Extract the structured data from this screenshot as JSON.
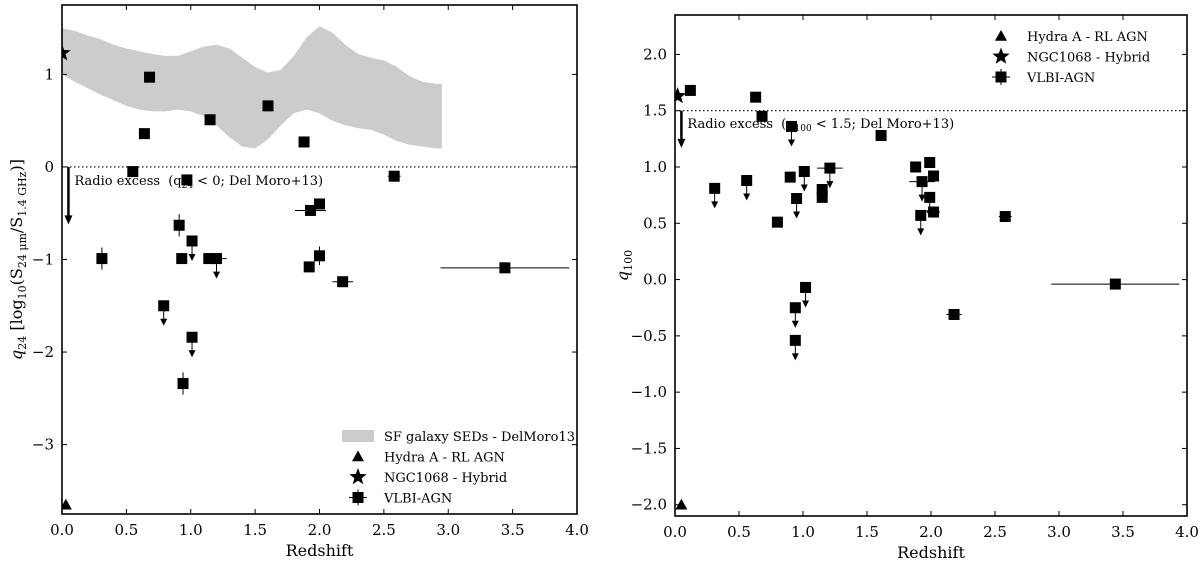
{
  "chart_data": [
    {
      "type": "scatter",
      "id": "left",
      "xlabel": "Redshift",
      "ylabel": "q24 [log10(S24μm/S1.4GHz)]",
      "ylabel_main": "q",
      "ylabel_sub": "24",
      "ylabel_rest": " [log",
      "ylabel_log_sub": "10",
      "ylabel_s1": "(S",
      "ylabel_s1_sub": "24 μm",
      "ylabel_slash": "/S",
      "ylabel_s2_sub": "1.4 GHz",
      "ylabel_end": ")]",
      "xlim": [
        0.0,
        4.0
      ],
      "ylim": [
        -3.75,
        1.75
      ],
      "xticks": [
        0.0,
        0.5,
        1.0,
        1.5,
        2.0,
        2.5,
        3.0,
        3.5,
        4.0
      ],
      "xtick_labels": [
        "0.0",
        "0.5",
        "1.0",
        "1.5",
        "2.0",
        "2.5",
        "3.0",
        "3.5",
        "4.0"
      ],
      "yticks": [
        1,
        0,
        -1,
        -2,
        -3
      ],
      "ytick_labels": [
        "1",
        "0",
        "−1",
        "−2",
        "−3"
      ],
      "threshold": 0,
      "annotation": {
        "text": "Radio excess",
        "detail": "(q",
        "detail_sub": "24",
        "detail_end": " < 0; Del Moro+13)",
        "x": 0.05,
        "y": -0.15,
        "arrow_from": 0.0,
        "arrow_to": -0.62
      },
      "band": {
        "name": "SF galaxy SEDs - DelMoro13",
        "x": [
          0.0,
          0.1,
          0.2,
          0.3,
          0.4,
          0.5,
          0.6,
          0.7,
          0.8,
          0.9,
          1.0,
          1.1,
          1.2,
          1.3,
          1.4,
          1.5,
          1.6,
          1.7,
          1.8,
          1.9,
          2.0,
          2.1,
          2.2,
          2.3,
          2.4,
          2.5,
          2.6,
          2.7,
          2.8,
          2.9,
          2.95
        ],
        "upper": [
          1.5,
          1.47,
          1.42,
          1.38,
          1.32,
          1.28,
          1.25,
          1.22,
          1.2,
          1.2,
          1.25,
          1.3,
          1.32,
          1.28,
          1.18,
          1.08,
          1.02,
          1.05,
          1.2,
          1.4,
          1.52,
          1.45,
          1.32,
          1.22,
          1.18,
          1.15,
          1.08,
          0.98,
          0.92,
          0.9,
          0.9
        ],
        "lower": [
          1.0,
          0.92,
          0.85,
          0.78,
          0.72,
          0.66,
          0.62,
          0.6,
          0.6,
          0.62,
          0.6,
          0.55,
          0.45,
          0.32,
          0.22,
          0.2,
          0.3,
          0.45,
          0.58,
          0.62,
          0.58,
          0.5,
          0.45,
          0.42,
          0.4,
          0.35,
          0.28,
          0.24,
          0.22,
          0.2,
          0.2
        ]
      },
      "hydra": {
        "name": "Hydra A - RL AGN",
        "x": 0.03,
        "y": -3.65
      },
      "ngc": {
        "name": "NGC1068 - Hybrid",
        "x": 0.0,
        "y": 1.23
      },
      "vlbi_name": "VLBI-AGN",
      "points": [
        {
          "x": 0.68,
          "y": 0.97
        },
        {
          "x": 0.64,
          "y": 0.36
        },
        {
          "x": 0.55,
          "y": -0.05
        },
        {
          "x": 1.15,
          "y": 0.51
        },
        {
          "x": 1.6,
          "y": 0.66
        },
        {
          "x": 1.88,
          "y": 0.27
        },
        {
          "x": 0.97,
          "y": -0.14
        },
        {
          "x": 2.58,
          "y": -0.1,
          "xerr": 0.05
        },
        {
          "x": 0.31,
          "y": -0.99,
          "yerr": 0.12
        },
        {
          "x": 0.91,
          "y": -0.63,
          "yerr": 0.12
        },
        {
          "x": 0.93,
          "y": -0.99
        },
        {
          "x": 1.01,
          "y": -0.8,
          "upper": true
        },
        {
          "x": 1.14,
          "y": -0.99
        },
        {
          "x": 1.2,
          "y": -0.99,
          "xerr": 0.08,
          "upper": true
        },
        {
          "x": 0.79,
          "y": -1.5,
          "upper": true
        },
        {
          "x": 1.01,
          "y": -1.84,
          "upper": true
        },
        {
          "x": 0.94,
          "y": -2.34,
          "yerr": 0.12
        },
        {
          "x": 1.93,
          "y": -0.47,
          "xerr": 0.12
        },
        {
          "x": 2.0,
          "y": -0.4
        },
        {
          "x": 1.92,
          "y": -1.08,
          "yerr": 0.05
        },
        {
          "x": 2.0,
          "y": -0.96,
          "yerr": 0.1
        },
        {
          "x": 2.18,
          "y": -1.24,
          "xerr": 0.08
        },
        {
          "x": 3.44,
          "y": -1.09,
          "xerr": 0.5
        }
      ]
    },
    {
      "type": "scatter",
      "id": "right",
      "xlabel": "Redshift",
      "ylabel_main": "q",
      "ylabel_sub": "100",
      "xlim": [
        0.0,
        4.0
      ],
      "ylim": [
        -2.1,
        2.35
      ],
      "xticks": [
        0.0,
        0.5,
        1.0,
        1.5,
        2.0,
        2.5,
        3.0,
        3.5,
        4.0
      ],
      "xtick_labels": [
        "0.0",
        "0.5",
        "1.0",
        "1.5",
        "2.0",
        "2.5",
        "3.0",
        "3.5",
        "4.0"
      ],
      "yticks": [
        2.0,
        1.5,
        1.0,
        0.5,
        0.0,
        -0.5,
        -1.0,
        -1.5,
        -2.0
      ],
      "ytick_labels": [
        "2.0",
        "1.5",
        "1.0",
        "0.5",
        "0.0",
        "−0.5",
        "−1.0",
        "−1.5",
        "−2.0"
      ],
      "threshold": 1.5,
      "annotation": {
        "text": "Radio excess",
        "detail": "(q",
        "detail_sub": "100",
        "detail_end": " < 1.5; Del Moro+13)",
        "x": 0.05,
        "y": 1.38,
        "arrow_from": 1.5,
        "arrow_to": 1.17
      },
      "hydra": {
        "name": "Hydra A - RL AGN",
        "x": 0.05,
        "y": -2.0
      },
      "ngc": {
        "name": "NGC1068 - Hybrid",
        "x": 0.02,
        "y": 1.63
      },
      "vlbi_name": "VLBI-AGN",
      "points": [
        {
          "x": 0.12,
          "y": 1.68
        },
        {
          "x": 0.63,
          "y": 1.62
        },
        {
          "x": 0.68,
          "y": 1.45
        },
        {
          "x": 0.91,
          "y": 1.36,
          "upper": true
        },
        {
          "x": 1.61,
          "y": 1.28
        },
        {
          "x": 0.31,
          "y": 0.81,
          "upper": true
        },
        {
          "x": 0.56,
          "y": 0.88,
          "upper": true
        },
        {
          "x": 0.8,
          "y": 0.51
        },
        {
          "x": 0.9,
          "y": 0.91
        },
        {
          "x": 0.95,
          "y": 0.72,
          "upper": true
        },
        {
          "x": 1.01,
          "y": 0.96,
          "upper": true
        },
        {
          "x": 1.15,
          "y": 0.8
        },
        {
          "x": 1.15,
          "y": 0.73
        },
        {
          "x": 1.21,
          "y": 0.99,
          "xerr": 0.1,
          "upper": true
        },
        {
          "x": 1.88,
          "y": 1.0
        },
        {
          "x": 1.93,
          "y": 0.87,
          "xerr": 0.1,
          "upper": true
        },
        {
          "x": 1.99,
          "y": 1.04
        },
        {
          "x": 2.02,
          "y": 0.92
        },
        {
          "x": 1.99,
          "y": 0.73,
          "upper": true
        },
        {
          "x": 1.92,
          "y": 0.57,
          "upper": true
        },
        {
          "x": 2.02,
          "y": 0.6,
          "xerr": 0.05
        },
        {
          "x": 2.58,
          "y": 0.56,
          "xerr": 0.05
        },
        {
          "x": 0.94,
          "y": -0.25,
          "upper": true
        },
        {
          "x": 1.02,
          "y": -0.07,
          "upper": true
        },
        {
          "x": 0.94,
          "y": -0.54,
          "upper": true
        },
        {
          "x": 2.18,
          "y": -0.31,
          "xerr": 0.06
        },
        {
          "x": 3.44,
          "y": -0.04,
          "xerr": 0.5
        }
      ]
    }
  ]
}
